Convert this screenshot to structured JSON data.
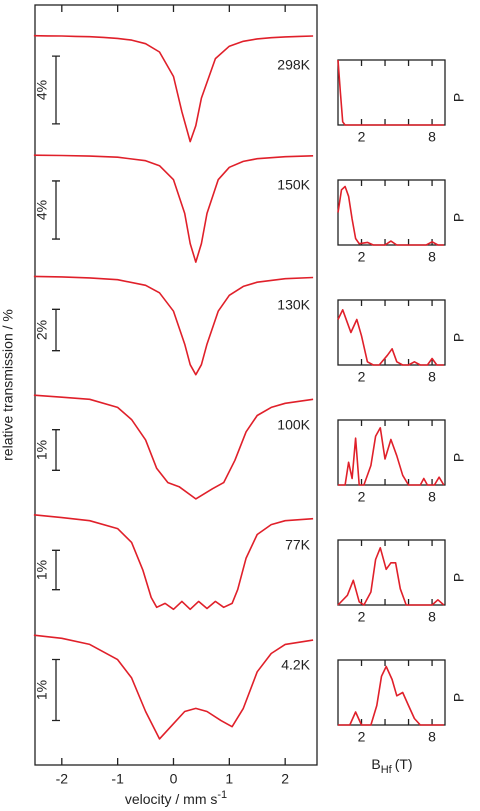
{
  "chart_data": [
    {
      "type": "line",
      "xlabel": "velocity / mm s",
      "xlabel_sup": "-1",
      "ylabel": "relative transmission / %",
      "xlim": [
        -2.48,
        2.57
      ],
      "xticks": [
        -2,
        -1,
        0,
        1,
        2
      ],
      "series": [
        {
          "name": "298K",
          "color": "#e0202a",
          "scale": {
            "value": 4,
            "label": "4%"
          },
          "ylim": [
            93.5,
            100.7
          ],
          "x": [
            -2.5,
            -2.25,
            -2,
            -1.75,
            -1.5,
            -1.25,
            -1,
            -0.75,
            -0.5,
            -0.25,
            0,
            0.15,
            0.3,
            0.4,
            0.5,
            0.75,
            1,
            1.25,
            1.5,
            1.75,
            2,
            2.25,
            2.5
          ],
          "values": [
            99.95,
            99.94,
            99.93,
            99.91,
            99.89,
            99.85,
            99.79,
            99.69,
            99.48,
            98.99,
            97.54,
            95.46,
            93.7,
            94.64,
            96.27,
            98.6,
            99.33,
            99.62,
            99.76,
            99.83,
            99.88,
            99.91,
            99.93
          ]
        },
        {
          "name": "150K",
          "color": "#e0202a",
          "scale": {
            "value": 4,
            "label": "4%"
          },
          "ylim": [
            92.4,
            100.8
          ],
          "x": [
            -2.5,
            -2,
            -1.5,
            -1,
            -0.5,
            -0.25,
            0,
            0.2,
            0.3,
            0.4,
            0.5,
            0.6,
            0.8,
            1,
            1.25,
            1.5,
            2,
            2.5
          ],
          "values": [
            99.96,
            99.94,
            99.9,
            99.82,
            99.58,
            99.24,
            98.27,
            95.95,
            93.87,
            92.6,
            93.87,
            95.95,
            98.27,
            99.13,
            99.53,
            99.72,
            99.86,
            99.92
          ]
        },
        {
          "name": "130K",
          "color": "#e0202a",
          "scale": {
            "value": 2,
            "label": "2%"
          },
          "ylim": [
            94.7,
            100.6
          ],
          "x": [
            -2.5,
            -2,
            -1.5,
            -1,
            -0.5,
            -0.25,
            0,
            0.2,
            0.3,
            0.4,
            0.5,
            0.6,
            0.8,
            1,
            1.25,
            1.5,
            2,
            2.5
          ],
          "values": [
            99.95,
            99.93,
            99.88,
            99.79,
            99.52,
            99.16,
            98.27,
            96.68,
            95.68,
            95.2,
            95.68,
            96.68,
            98.27,
            99.04,
            99.47,
            99.67,
            99.84,
            99.9
          ]
        },
        {
          "name": "100K",
          "color": "#e0202a",
          "scale": {
            "value": 1,
            "label": "1%"
          },
          "ylim": [
            97.3,
            100.3
          ],
          "x": [
            -2.5,
            -2,
            -1.5,
            -1,
            -0.75,
            -0.5,
            -0.3,
            -0.1,
            0.1,
            0.4,
            0.7,
            0.9,
            1.1,
            1.3,
            1.5,
            1.75,
            2,
            2.5
          ],
          "values": [
            100,
            99.95,
            99.9,
            99.7,
            99.4,
            98.9,
            98.2,
            97.85,
            97.75,
            97.45,
            97.7,
            97.85,
            98.4,
            99.1,
            99.5,
            99.7,
            99.8,
            99.9
          ]
        },
        {
          "name": "77K",
          "color": "#e0202a",
          "scale": {
            "value": 1,
            "label": "1%"
          },
          "ylim": [
            97.2,
            100.3
          ],
          "x": [
            -2.5,
            -2,
            -1.5,
            -1,
            -0.75,
            -0.55,
            -0.4,
            -0.3,
            -0.15,
            0,
            0.15,
            0.3,
            0.45,
            0.6,
            0.75,
            0.9,
            1.05,
            1.15,
            1.3,
            1.5,
            1.75,
            2,
            2.5
          ],
          "values": [
            100,
            99.93,
            99.85,
            99.65,
            99.3,
            98.6,
            97.9,
            97.65,
            97.75,
            97.6,
            97.8,
            97.6,
            97.8,
            97.62,
            97.8,
            97.65,
            97.75,
            98.1,
            98.9,
            99.5,
            99.75,
            99.85,
            99.9
          ]
        },
        {
          "name": "4.2K",
          "color": "#e0202a",
          "scale": {
            "value": 1,
            "label": "1%"
          },
          "ylim": [
            98.2,
            100.2
          ],
          "x": [
            -2.5,
            -2,
            -1.5,
            -1,
            -0.75,
            -0.5,
            -0.25,
            0,
            0.2,
            0.4,
            0.6,
            0.85,
            1.05,
            1.25,
            1.5,
            1.75,
            2,
            2.5
          ],
          "values": [
            100,
            99.95,
            99.85,
            99.6,
            99.3,
            98.75,
            98.3,
            98.55,
            98.75,
            98.8,
            98.75,
            98.6,
            98.5,
            98.8,
            99.4,
            99.7,
            99.85,
            99.92
          ]
        }
      ]
    },
    {
      "type": "line",
      "xlabel": "B",
      "xlabel_sub": "Hf",
      "xlabel_unit": "(T)",
      "ylabel": "P",
      "xlim": [
        0,
        9.1
      ],
      "xticks": [
        2,
        8
      ],
      "xminor": [
        4,
        6
      ],
      "ylim": [
        0,
        1
      ],
      "series": [
        {
          "color": "#e0202a",
          "x": [
            0,
            0.2,
            0.4,
            0.6,
            2,
            4,
            6,
            8,
            9
          ],
          "values": [
            1,
            0.5,
            0.05,
            0,
            0,
            0,
            0,
            0,
            0
          ]
        },
        {
          "color": "#e0202a",
          "x": [
            0,
            0.3,
            0.6,
            0.9,
            1.2,
            1.5,
            1.8,
            2.5,
            3,
            4,
            4.5,
            5,
            6,
            7.5,
            8,
            8.5,
            9
          ],
          "values": [
            0.5,
            0.85,
            0.9,
            0.75,
            0.4,
            0.1,
            0.02,
            0.04,
            0,
            0,
            0.06,
            0,
            0,
            0,
            0.05,
            0,
            0
          ]
        },
        {
          "color": "#e0202a",
          "x": [
            0,
            0.4,
            0.8,
            1.1,
            1.6,
            2,
            2.5,
            3,
            3.5,
            4.2,
            4.6,
            5,
            5.5,
            6,
            6.5,
            7,
            7.6,
            8,
            8.4,
            9
          ],
          "values": [
            0.7,
            0.85,
            0.65,
            0.5,
            0.7,
            0.45,
            0.05,
            0,
            0,
            0.15,
            0.25,
            0.05,
            0,
            0,
            0.05,
            0,
            0,
            0.1,
            0,
            0
          ]
        },
        {
          "color": "#e0202a",
          "x": [
            0,
            0.6,
            0.9,
            1.2,
            1.5,
            1.8,
            2.2,
            2.8,
            3.2,
            3.6,
            4,
            4.5,
            5,
            5.5,
            6,
            6.5,
            7,
            7.3,
            7.6,
            8.2,
            8.6,
            9
          ],
          "values": [
            0,
            0,
            0.35,
            0.1,
            0.72,
            0,
            0,
            0.3,
            0.75,
            0.88,
            0.4,
            0.7,
            0.45,
            0.15,
            0,
            0,
            0,
            0.1,
            0,
            0,
            0.12,
            0
          ]
        },
        {
          "color": "#e0202a",
          "x": [
            0,
            0.8,
            1.3,
            1.8,
            2.2,
            2.8,
            3.2,
            3.6,
            4.1,
            4.5,
            4.9,
            5.3,
            5.8,
            6.5,
            8,
            8.5,
            9
          ],
          "values": [
            0,
            0.15,
            0.38,
            0.05,
            0,
            0.2,
            0.7,
            0.88,
            0.55,
            0.65,
            0.65,
            0.25,
            0,
            0,
            0,
            0.08,
            0
          ]
        },
        {
          "color": "#e0202a",
          "x": [
            0,
            1,
            1.5,
            2,
            2.8,
            3.3,
            3.7,
            4.1,
            4.6,
            5,
            5.5,
            6,
            6.5,
            7,
            8,
            9
          ],
          "values": [
            0,
            0,
            0.2,
            0,
            0,
            0.3,
            0.75,
            0.9,
            0.7,
            0.45,
            0.5,
            0.3,
            0.1,
            0,
            0,
            0
          ]
        }
      ]
    }
  ]
}
